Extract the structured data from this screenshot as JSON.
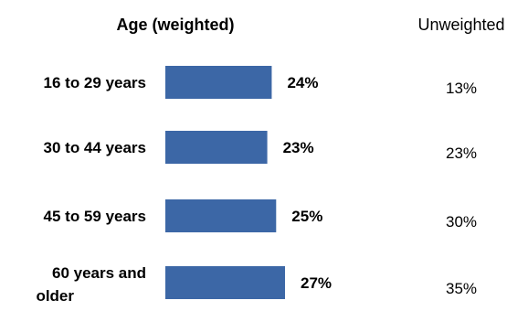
{
  "chart_data": {
    "type": "bar",
    "title": "Age (weighted)",
    "unweighted_header": "Unweighted",
    "categories": [
      [
        "16 to 29 years"
      ],
      [
        "30 to 44 years"
      ],
      [
        "45 to 59 years"
      ],
      [
        "60 years and",
        "older"
      ]
    ],
    "values": [
      24,
      23,
      25,
      27
    ],
    "value_labels": [
      "24%",
      "23%",
      "25%",
      "27%"
    ],
    "unweighted_values": [
      13,
      23,
      30,
      35
    ],
    "unweighted_labels": [
      "13%",
      "23%",
      "30%",
      "35%"
    ],
    "orientation": "horizontal",
    "grid": false,
    "bar_color": "#3C67A6"
  }
}
